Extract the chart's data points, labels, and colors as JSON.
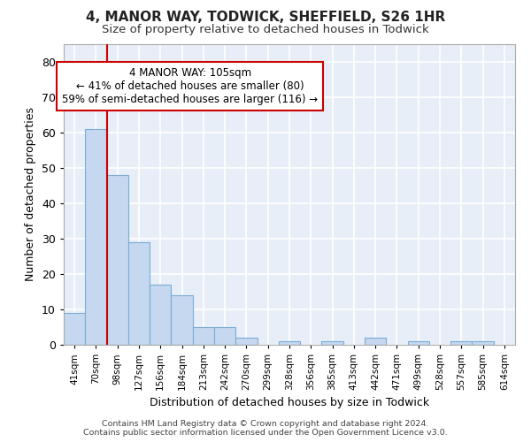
{
  "title": "4, MANOR WAY, TODWICK, SHEFFIELD, S26 1HR",
  "subtitle": "Size of property relative to detached houses in Todwick",
  "xlabel": "Distribution of detached houses by size in Todwick",
  "ylabel": "Number of detached properties",
  "categories": [
    "41sqm",
    "70sqm",
    "98sqm",
    "127sqm",
    "156sqm",
    "184sqm",
    "213sqm",
    "242sqm",
    "270sqm",
    "299sqm",
    "328sqm",
    "356sqm",
    "385sqm",
    "413sqm",
    "442sqm",
    "471sqm",
    "499sqm",
    "528sqm",
    "557sqm",
    "585sqm",
    "614sqm"
  ],
  "values": [
    9,
    61,
    48,
    29,
    17,
    14,
    5,
    5,
    2,
    0,
    1,
    0,
    1,
    0,
    2,
    0,
    1,
    0,
    1,
    1,
    0
  ],
  "bar_color": "#c5d8f0",
  "bar_edge_color": "#7aadd4",
  "vline_color": "#cc0000",
  "annotation_line1": "4 MANOR WAY: 105sqm",
  "annotation_line2": "← 41% of detached houses are smaller (80)",
  "annotation_line3": "59% of semi-detached houses are larger (116) →",
  "annotation_box_color": "#ffffff",
  "annotation_box_edge_color": "#cc0000",
  "ylim": [
    0,
    85
  ],
  "yticks": [
    0,
    10,
    20,
    30,
    40,
    50,
    60,
    70,
    80
  ],
  "fig_background": "#ffffff",
  "plot_background": "#e8eef8",
  "grid_color": "#ffffff",
  "footer_line1": "Contains HM Land Registry data © Crown copyright and database right 2024.",
  "footer_line2": "Contains public sector information licensed under the Open Government Licence v3.0."
}
